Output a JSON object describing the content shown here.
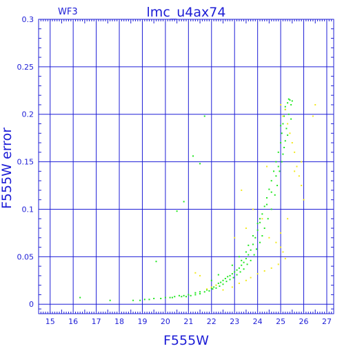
{
  "chart_data": {
    "type": "scatter",
    "title": "lmc_u4ax74",
    "subtitle": "WF3",
    "xlabel": "F555W",
    "ylabel": "F555W error",
    "xlim": [
      14.5,
      27.3
    ],
    "ylim": [
      -0.01,
      0.3
    ],
    "grid": true,
    "x_ticks": [
      "15",
      "16",
      "17",
      "18",
      "19",
      "20",
      "21",
      "22",
      "23",
      "24",
      "25",
      "26",
      "27"
    ],
    "y_ticks": [
      "0",
      "0.05",
      "0.1",
      "0.15",
      "0.2",
      "0.25",
      "0.3"
    ],
    "colors": {
      "axes": "#1c1cd6",
      "grid": "#1c1cd6",
      "green": "#1ee61e",
      "yellow": "#f2e81a"
    },
    "series": [
      {
        "color": "green",
        "points": [
          [
            16.3,
            0.007
          ],
          [
            17.6,
            0.004
          ],
          [
            18.6,
            0.004
          ],
          [
            18.9,
            0.004
          ],
          [
            19.1,
            0.005
          ],
          [
            19.3,
            0.005
          ],
          [
            19.5,
            0.006
          ],
          [
            19.6,
            0.045
          ],
          [
            19.8,
            0.006
          ],
          [
            20.0,
            0.007
          ],
          [
            20.2,
            0.007
          ],
          [
            20.4,
            0.008
          ],
          [
            20.5,
            0.098
          ],
          [
            20.6,
            0.009
          ],
          [
            20.8,
            0.108
          ],
          [
            20.8,
            0.009
          ],
          [
            21.0,
            0.01
          ],
          [
            21.2,
            0.156
          ],
          [
            21.3,
            0.012
          ],
          [
            21.5,
            0.148
          ],
          [
            21.5,
            0.013
          ],
          [
            21.7,
            0.198
          ],
          [
            21.8,
            0.015
          ],
          [
            22.0,
            0.017
          ],
          [
            22.1,
            0.018
          ],
          [
            22.2,
            0.02
          ],
          [
            22.3,
            0.022
          ],
          [
            22.4,
            0.023
          ],
          [
            22.5,
            0.025
          ],
          [
            22.6,
            0.027
          ],
          [
            22.7,
            0.029
          ],
          [
            22.8,
            0.03
          ],
          [
            22.9,
            0.032
          ],
          [
            23.0,
            0.034
          ],
          [
            23.1,
            0.036
          ],
          [
            23.2,
            0.038
          ],
          [
            23.3,
            0.041
          ],
          [
            23.4,
            0.044
          ],
          [
            23.5,
            0.048
          ],
          [
            23.6,
            0.052
          ],
          [
            23.7,
            0.057
          ],
          [
            23.8,
            0.063
          ],
          [
            23.9,
            0.07
          ],
          [
            24.0,
            0.078
          ],
          [
            24.1,
            0.086
          ],
          [
            24.2,
            0.095
          ],
          [
            24.3,
            0.103
          ],
          [
            24.4,
            0.112
          ],
          [
            24.5,
            0.121
          ],
          [
            24.6,
            0.13
          ],
          [
            24.7,
            0.14
          ],
          [
            24.8,
            0.15
          ],
          [
            24.9,
            0.16
          ],
          [
            25.0,
            0.17
          ],
          [
            25.05,
            0.18
          ],
          [
            25.1,
            0.19
          ],
          [
            25.15,
            0.198
          ],
          [
            25.2,
            0.205
          ],
          [
            25.3,
            0.212
          ],
          [
            25.4,
            0.215
          ],
          [
            25.5,
            0.214
          ],
          [
            25.45,
            0.21
          ],
          [
            25.35,
            0.2
          ],
          [
            25.25,
            0.185
          ],
          [
            25.15,
            0.165
          ],
          [
            25.05,
            0.15
          ],
          [
            24.95,
            0.14
          ],
          [
            24.85,
            0.125
          ],
          [
            24.75,
            0.115
          ],
          [
            24.6,
            0.1
          ],
          [
            24.45,
            0.09
          ],
          [
            24.3,
            0.08
          ],
          [
            24.2,
            0.072
          ],
          [
            24.1,
            0.065
          ],
          [
            23.95,
            0.058
          ],
          [
            23.85,
            0.052
          ],
          [
            23.7,
            0.046
          ],
          [
            23.55,
            0.042
          ],
          [
            23.4,
            0.037
          ],
          [
            23.25,
            0.034
          ],
          [
            23.1,
            0.031
          ],
          [
            22.95,
            0.028
          ],
          [
            22.8,
            0.026
          ],
          [
            22.65,
            0.024
          ],
          [
            22.5,
            0.021
          ],
          [
            22.35,
            0.019
          ],
          [
            22.2,
            0.017
          ],
          [
            22.05,
            0.016
          ],
          [
            21.9,
            0.014
          ],
          [
            21.7,
            0.013
          ],
          [
            21.5,
            0.011
          ],
          [
            21.3,
            0.01
          ],
          [
            21.1,
            0.009
          ],
          [
            20.9,
            0.008
          ],
          [
            20.7,
            0.008
          ],
          [
            20.3,
            0.007
          ],
          [
            22.0,
            0.025
          ],
          [
            22.3,
            0.031
          ],
          [
            22.9,
            0.041
          ],
          [
            23.2,
            0.05
          ],
          [
            23.6,
            0.062
          ],
          [
            24.0,
            0.085
          ],
          [
            24.4,
            0.105
          ],
          [
            24.8,
            0.135
          ],
          [
            25.1,
            0.158
          ],
          [
            25.3,
            0.178
          ],
          [
            25.45,
            0.195
          ],
          [
            24.1,
            0.09
          ],
          [
            23.8,
            0.072
          ],
          [
            23.5,
            0.055
          ],
          [
            23.3,
            0.046
          ],
          [
            24.6,
            0.118
          ],
          [
            24.9,
            0.145
          ],
          [
            25.2,
            0.172
          ],
          [
            25.0,
            0.188
          ],
          [
            25.2,
            0.208
          ],
          [
            25.35,
            0.216
          ]
        ]
      },
      {
        "color": "yellow",
        "points": [
          [
            25.0,
            0.21
          ],
          [
            25.2,
            0.205
          ],
          [
            25.1,
            0.198
          ],
          [
            25.3,
            0.19
          ],
          [
            25.4,
            0.18
          ],
          [
            25.5,
            0.17
          ],
          [
            25.6,
            0.16
          ],
          [
            25.7,
            0.145
          ],
          [
            25.8,
            0.135
          ],
          [
            25.9,
            0.125
          ],
          [
            26.0,
            0.11
          ],
          [
            26.5,
            0.21
          ],
          [
            26.4,
            0.198
          ],
          [
            25.0,
            0.06
          ],
          [
            25.1,
            0.055
          ],
          [
            25.2,
            0.048
          ],
          [
            24.9,
            0.042
          ],
          [
            24.6,
            0.038
          ],
          [
            24.3,
            0.035
          ],
          [
            24.0,
            0.032
          ],
          [
            23.7,
            0.028
          ],
          [
            23.5,
            0.025
          ],
          [
            23.2,
            0.022
          ],
          [
            22.9,
            0.018
          ],
          [
            22.5,
            0.015
          ],
          [
            22.2,
            0.02
          ],
          [
            22.0,
            0.018
          ],
          [
            21.8,
            0.016
          ],
          [
            21.5,
            0.03
          ],
          [
            21.3,
            0.033
          ],
          [
            23.0,
            0.07
          ],
          [
            23.5,
            0.08
          ],
          [
            24.2,
            0.09
          ],
          [
            24.5,
            0.07
          ],
          [
            24.8,
            0.065
          ],
          [
            25.0,
            0.075
          ],
          [
            25.3,
            0.09
          ],
          [
            23.3,
            0.12
          ],
          [
            23.8,
            0.1
          ],
          [
            24.4,
            0.145
          ],
          [
            25.6,
            0.14
          ],
          [
            25.9,
            0.15
          ]
        ]
      }
    ]
  }
}
